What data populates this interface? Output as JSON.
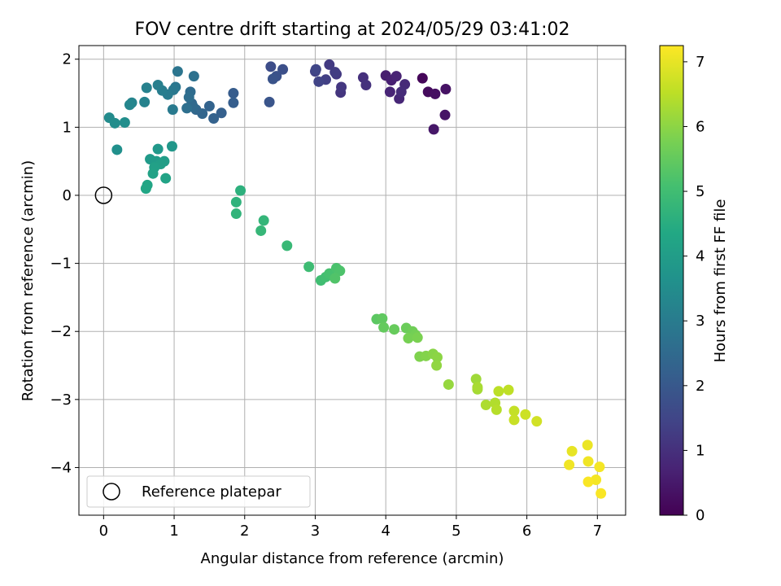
{
  "chart_data": {
    "type": "scatter",
    "title": "FOV centre drift starting at 2024/05/29 03:41:02",
    "xlabel": "Angular distance from reference (arcmin)",
    "ylabel": "Rotation from reference (arcmin)",
    "xlim": [
      -0.35,
      7.4
    ],
    "ylim": [
      -4.7,
      2.2
    ],
    "xticks": [
      0,
      1,
      2,
      3,
      4,
      5,
      6,
      7
    ],
    "yticks": [
      -4,
      -3,
      -2,
      -1,
      0,
      1,
      2
    ],
    "grid": true,
    "legend": {
      "position": "lower-left",
      "label": "Reference platepar"
    },
    "reference_point": {
      "x": 0,
      "y": 0
    },
    "colorbar": {
      "label": "Hours from first FF file",
      "range": [
        0,
        7.25
      ],
      "ticks": [
        0,
        1,
        2,
        3,
        4,
        5,
        6,
        7
      ],
      "colormap": "viridis"
    },
    "series": [
      {
        "points": [
          [
            4.52,
            1.72,
            0.1
          ],
          [
            4.6,
            1.52,
            0.2
          ],
          [
            4.7,
            1.49,
            0.3
          ],
          [
            4.85,
            1.56,
            0.35
          ],
          [
            4.84,
            1.18,
            0.4
          ],
          [
            4.68,
            0.97,
            0.45
          ],
          [
            4.0,
            1.76,
            0.6
          ],
          [
            4.08,
            1.69,
            0.65
          ],
          [
            4.15,
            1.75,
            0.7
          ],
          [
            4.06,
            1.52,
            0.75
          ],
          [
            4.19,
            1.42,
            0.8
          ],
          [
            4.27,
            1.63,
            0.85
          ],
          [
            4.22,
            1.52,
            0.9
          ],
          [
            3.68,
            1.73,
            1.0
          ],
          [
            3.72,
            1.62,
            1.05
          ],
          [
            3.36,
            1.51,
            1.1
          ],
          [
            3.37,
            1.59,
            1.15
          ],
          [
            3.3,
            1.78,
            1.2
          ],
          [
            3.2,
            1.92,
            1.25
          ],
          [
            3.28,
            1.81,
            1.3
          ],
          [
            3.15,
            1.7,
            1.35
          ],
          [
            3.0,
            1.82,
            1.4
          ],
          [
            3.05,
            1.67,
            1.45
          ],
          [
            3.01,
            1.85,
            1.5
          ],
          [
            2.37,
            1.89,
            1.7
          ],
          [
            2.54,
            1.85,
            1.75
          ],
          [
            2.45,
            1.75,
            1.8
          ],
          [
            2.4,
            1.71,
            1.85
          ],
          [
            2.35,
            1.37,
            1.9
          ],
          [
            1.84,
            1.5,
            2.1
          ],
          [
            1.84,
            1.36,
            2.15
          ],
          [
            1.67,
            1.21,
            2.2
          ],
          [
            1.56,
            1.13,
            2.25
          ],
          [
            1.5,
            1.31,
            2.3
          ],
          [
            1.4,
            1.2,
            2.35
          ],
          [
            1.31,
            1.26,
            2.4
          ],
          [
            1.25,
            1.35,
            2.45
          ],
          [
            1.27,
            1.3,
            2.5
          ],
          [
            1.23,
            1.52,
            2.55
          ],
          [
            1.21,
            1.44,
            2.6
          ],
          [
            1.18,
            1.28,
            2.65
          ],
          [
            1.28,
            1.75,
            2.7
          ],
          [
            1.05,
            1.82,
            2.8
          ],
          [
            1.02,
            1.59,
            2.85
          ],
          [
            0.99,
            1.55,
            2.9
          ],
          [
            0.98,
            1.26,
            2.95
          ],
          [
            0.91,
            1.48,
            3.0
          ],
          [
            0.83,
            1.54,
            3.05
          ],
          [
            0.77,
            1.62,
            3.1
          ],
          [
            0.61,
            1.58,
            3.15
          ],
          [
            0.58,
            1.37,
            3.2
          ],
          [
            0.4,
            1.36,
            3.25
          ],
          [
            0.37,
            1.33,
            3.3
          ],
          [
            0.08,
            1.14,
            3.45
          ],
          [
            0.16,
            1.06,
            3.5
          ],
          [
            0.3,
            1.07,
            3.55
          ],
          [
            0.19,
            0.67,
            3.6
          ],
          [
            0.97,
            0.72,
            3.8
          ],
          [
            0.77,
            0.68,
            3.85
          ],
          [
            0.66,
            0.53,
            3.9
          ],
          [
            0.75,
            0.5,
            3.95
          ],
          [
            0.86,
            0.5,
            4.0
          ],
          [
            0.81,
            0.46,
            4.05
          ],
          [
            0.72,
            0.41,
            4.1
          ],
          [
            0.7,
            0.32,
            4.15
          ],
          [
            0.88,
            0.25,
            4.2
          ],
          [
            0.62,
            0.15,
            4.25
          ],
          [
            0.6,
            0.1,
            4.3
          ],
          [
            1.94,
            0.07,
            4.6
          ],
          [
            1.88,
            -0.1,
            4.65
          ],
          [
            1.88,
            -0.27,
            4.7
          ],
          [
            2.27,
            -0.37,
            4.75
          ],
          [
            2.23,
            -0.52,
            4.8
          ],
          [
            2.6,
            -0.74,
            4.85
          ],
          [
            2.91,
            -1.05,
            4.95
          ],
          [
            3.08,
            -1.25,
            5.0
          ],
          [
            3.15,
            -1.2,
            5.05
          ],
          [
            3.2,
            -1.15,
            5.1
          ],
          [
            3.3,
            -1.07,
            5.15
          ],
          [
            3.35,
            -1.11,
            5.2
          ],
          [
            3.28,
            -1.22,
            5.25
          ],
          [
            3.87,
            -1.82,
            5.4
          ],
          [
            3.95,
            -1.81,
            5.45
          ],
          [
            3.97,
            -1.94,
            5.5
          ],
          [
            4.12,
            -1.97,
            5.55
          ],
          [
            4.29,
            -1.95,
            5.6
          ],
          [
            4.38,
            -2.0,
            5.65
          ],
          [
            4.42,
            -2.05,
            5.7
          ],
          [
            4.32,
            -2.1,
            5.75
          ],
          [
            4.45,
            -2.09,
            5.8
          ],
          [
            4.48,
            -2.37,
            5.85
          ],
          [
            4.57,
            -2.36,
            5.9
          ],
          [
            4.67,
            -2.33,
            5.95
          ],
          [
            4.73,
            -2.38,
            6.0
          ],
          [
            4.72,
            -2.5,
            6.05
          ],
          [
            4.89,
            -2.78,
            6.1
          ],
          [
            5.28,
            -2.7,
            6.2
          ],
          [
            5.3,
            -2.85,
            6.25
          ],
          [
            5.3,
            -2.82,
            6.3
          ],
          [
            5.42,
            -3.08,
            6.35
          ],
          [
            5.55,
            -3.05,
            6.4
          ],
          [
            5.57,
            -3.15,
            6.45
          ],
          [
            5.6,
            -2.88,
            6.5
          ],
          [
            5.74,
            -2.86,
            6.55
          ],
          [
            5.82,
            -3.17,
            6.6
          ],
          [
            5.82,
            -3.3,
            6.65
          ],
          [
            5.98,
            -3.22,
            6.7
          ],
          [
            6.14,
            -3.32,
            6.75
          ],
          [
            6.64,
            -3.76,
            7.0
          ],
          [
            6.86,
            -3.67,
            7.05
          ],
          [
            6.87,
            -3.91,
            7.1
          ],
          [
            6.6,
            -3.96,
            7.1
          ],
          [
            7.03,
            -3.99,
            7.15
          ],
          [
            6.98,
            -4.18,
            7.15
          ],
          [
            6.87,
            -4.21,
            7.2
          ],
          [
            7.05,
            -4.38,
            7.2
          ]
        ]
      }
    ]
  }
}
